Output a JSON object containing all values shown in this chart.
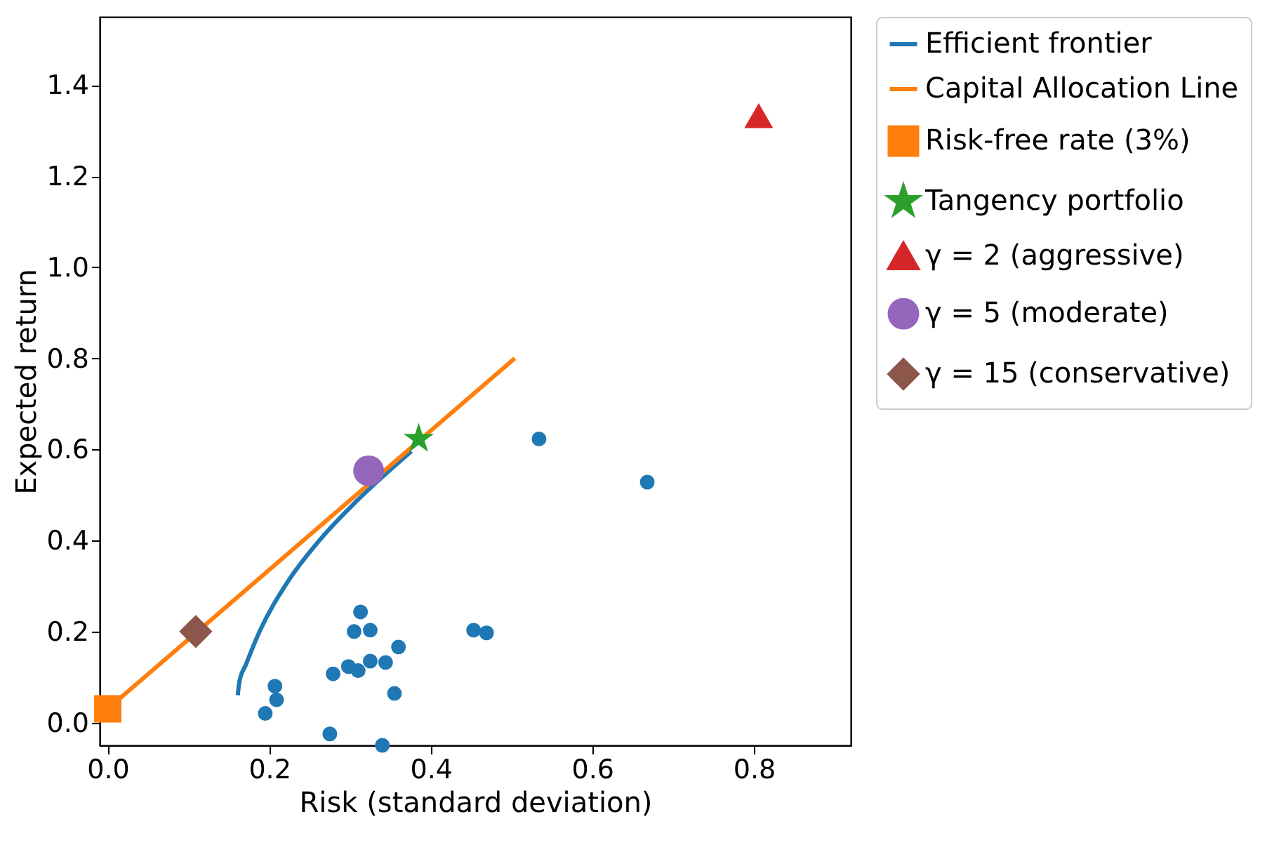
{
  "chart_data": {
    "type": "scatter",
    "xlabel": "Risk (standard deviation)",
    "ylabel": "Expected return",
    "xlim": [
      -0.01,
      0.92
    ],
    "ylim": [
      -0.05,
      1.55
    ],
    "xticks": [
      {
        "value": 0,
        "label": "0.0"
      },
      0.2,
      0.4,
      0.6,
      0.8
    ],
    "yticks": [
      {
        "value": 0,
        "label": "0.0"
      },
      0.2,
      0.4,
      0.6,
      0.8,
      {
        "value": 1,
        "label": "1.0"
      },
      1.2,
      1.4
    ],
    "grid": false,
    "legend": "right",
    "series": [
      {
        "color": "#1f77b4",
        "marker": "circle",
        "x": [
          0.195,
          0.209,
          0.207,
          0.275,
          0.34,
          0.279,
          0.298,
          0.31,
          0.325,
          0.344,
          0.36,
          0.355,
          0.313,
          0.305,
          0.325,
          0.453,
          0.469,
          0.534,
          0.668
        ],
        "values": [
          0.02,
          0.05,
          0.08,
          -0.025,
          -0.05,
          0.107,
          0.123,
          0.114,
          0.135,
          0.132,
          0.166,
          0.064,
          0.243,
          0.2,
          0.203,
          0.203,
          0.197,
          0.623,
          0.528
        ]
      },
      {
        "type": "line",
        "name": "Efficient frontier",
        "color": "#1f77b4",
        "line_style": "solid",
        "x": [
          0.161,
          0.163,
          0.171,
          0.188,
          0.222,
          0.262,
          0.309,
          0.376
        ],
        "values": [
          0.06,
          0.09,
          0.127,
          0.2,
          0.307,
          0.4,
          0.488,
          0.596
        ]
      },
      {
        "type": "line",
        "name": "Capital Allocation Line",
        "color": "#ff7f0e",
        "line_style": "solid",
        "x": [
          0.0,
          0.504
        ],
        "values": [
          0.03,
          0.8
        ]
      },
      {
        "type": "scatter",
        "name": "Risk-free rate (3%)",
        "color": "#ff7f0e",
        "marker": "square",
        "x": [
          0.0
        ],
        "values": [
          0.03
        ]
      },
      {
        "type": "scatter",
        "name": "Tangency portfolio",
        "color": "#2ca02c",
        "marker": "star",
        "x": [
          0.385
        ],
        "values": [
          0.623
        ]
      },
      {
        "type": "scatter",
        "name": "γ = 2 (aggressive)",
        "color": "#d62728",
        "marker": "triangle",
        "x": [
          0.806
        ],
        "values": [
          1.333
        ]
      },
      {
        "type": "scatter",
        "name": "γ = 5 (moderate)",
        "color": "#9467bd",
        "marker": "circle",
        "x": [
          0.323
        ],
        "values": [
          0.553
        ]
      },
      {
        "type": "scatter",
        "name": "γ = 15 (conservative)",
        "color": "#8c564b",
        "marker": "diamond",
        "x": [
          0.109
        ],
        "values": [
          0.2
        ]
      }
    ]
  }
}
